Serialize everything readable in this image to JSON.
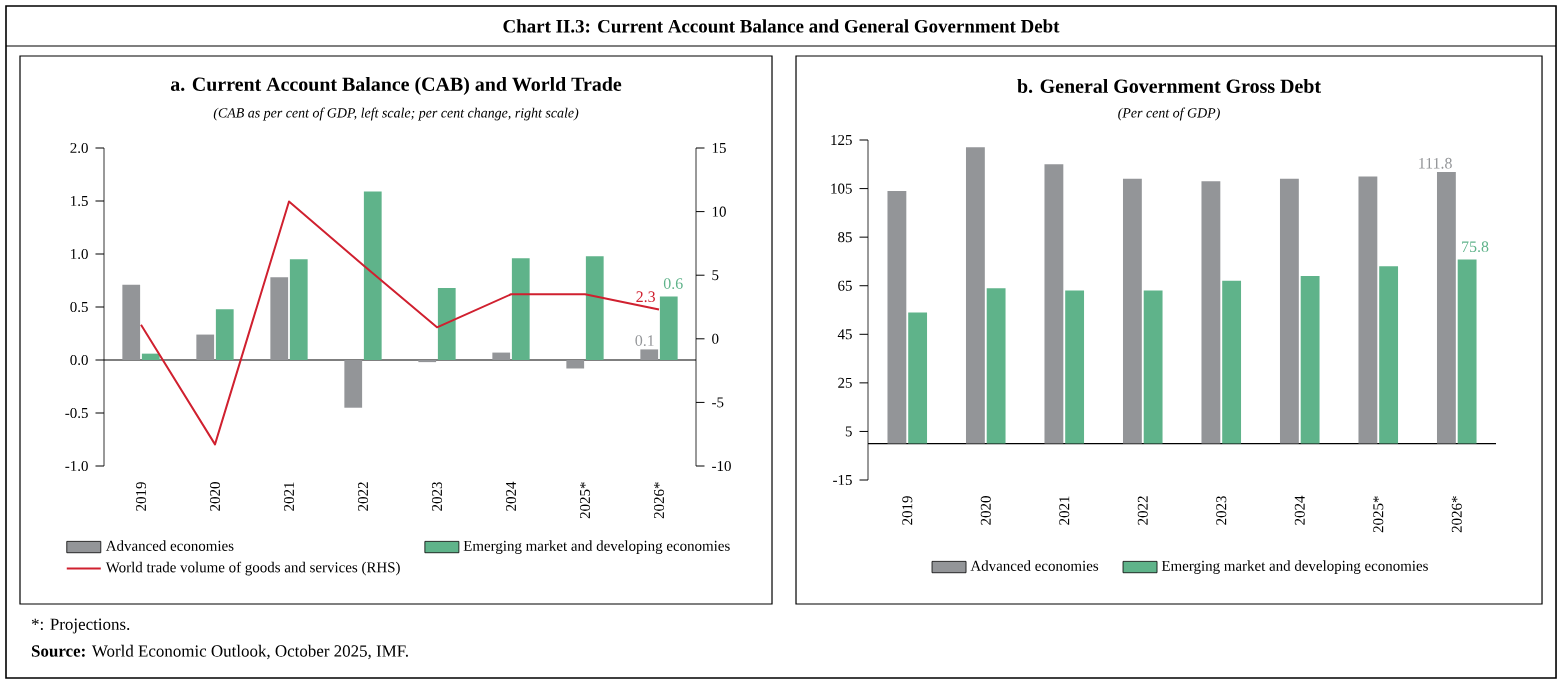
{
  "chart_data": [
    {
      "type": "other",
      "title": "Chart II.3: Current Account Balance and General Government Debt",
      "annotations": [
        "*: Projections.",
        "**Source:** World Economic Outlook, October 2025, IMF."
      ]
    },
    {
      "type": "bar",
      "title": "a. Current Account Balance (CAB) and World Trade",
      "subtitle": "(CAB as per cent of GDP, left scale; per cent change, right scale)",
      "categories": [
        "2019",
        "2020",
        "2021",
        "2022",
        "2023",
        "2024",
        "2025*",
        "2026*"
      ],
      "series": [
        {
          "name": "Advanced economies",
          "color": "#939598",
          "values": [
            0.71,
            0.24,
            0.78,
            -0.45,
            -0.02,
            0.07,
            -0.08,
            0.1
          ],
          "value_labels": [
            null,
            null,
            null,
            null,
            null,
            null,
            null,
            "0.1"
          ]
        },
        {
          "name": "Emerging market and developing economies",
          "color": "#5fb38a",
          "values": [
            0.06,
            0.48,
            0.95,
            1.59,
            0.68,
            0.96,
            0.98,
            0.6
          ],
          "value_labels": [
            null,
            null,
            null,
            null,
            null,
            null,
            null,
            "0.6"
          ]
        },
        {
          "name": "World trade volume of goods and services (RHS)",
          "type": "line",
          "axis": "y2",
          "color": "#d0202f",
          "values": [
            1.1,
            -8.3,
            10.8,
            5.8,
            0.9,
            3.5,
            3.5,
            2.3
          ],
          "value_labels": [
            null,
            null,
            null,
            null,
            null,
            null,
            null,
            "2.3"
          ]
        }
      ],
      "ylim": [
        -1,
        2
      ],
      "yticks": [
        {
          "value": -1,
          "label": "-1.0"
        },
        {
          "value": -0.5,
          "label": "-0.5"
        },
        {
          "value": 0,
          "label": "0.0"
        },
        {
          "value": 0.5,
          "label": "0.5"
        },
        {
          "value": 1,
          "label": "1.0"
        },
        {
          "value": 1.5,
          "label": "1.5"
        },
        {
          "value": 2,
          "label": "2.0"
        }
      ],
      "y2lim": [
        -10,
        15
      ],
      "y2ticks": [
        -10,
        -5,
        0,
        5,
        10,
        15
      ],
      "legend": "bottom"
    },
    {
      "type": "bar",
      "title": "b. General Government Gross Debt",
      "subtitle": "(Per cent of GDP)",
      "categories": [
        "2019",
        "2020",
        "2021",
        "2022",
        "2023",
        "2024",
        "2025*",
        "2026*"
      ],
      "series": [
        {
          "name": "Advanced economies",
          "color": "#939598",
          "values": [
            104,
            122,
            115,
            109,
            108,
            109,
            110,
            111.8
          ],
          "value_labels": [
            null,
            null,
            null,
            null,
            null,
            null,
            null,
            "111.8"
          ]
        },
        {
          "name": "Emerging market and developing economies",
          "color": "#5fb38a",
          "values": [
            54,
            64,
            63,
            63,
            67,
            69,
            73,
            75.8
          ],
          "value_labels": [
            null,
            null,
            null,
            null,
            null,
            null,
            null,
            "75.8"
          ]
        }
      ],
      "ylim": [
        -15,
        125
      ],
      "yticks": [
        -15,
        5,
        25,
        45,
        65,
        85,
        105,
        125
      ],
      "legend": "bottom"
    }
  ]
}
